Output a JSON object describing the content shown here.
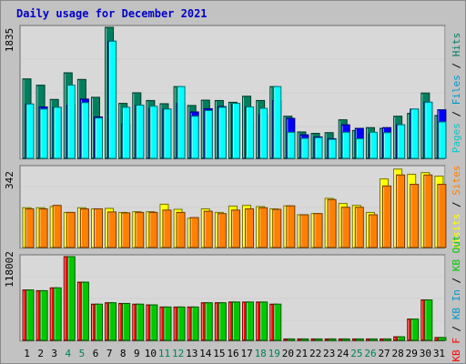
{
  "title": "Daily usage for December 2021",
  "chart_data": [
    {
      "type": "bar",
      "panel": "top",
      "categories": [
        "1",
        "2",
        "3",
        "4",
        "5",
        "6",
        "7",
        "8",
        "9",
        "10",
        "11",
        "12",
        "13",
        "14",
        "15",
        "16",
        "17",
        "18",
        "19",
        "20",
        "21",
        "22",
        "23",
        "24",
        "25",
        "26",
        "27",
        "28",
        "29",
        "30",
        "31"
      ],
      "weekend_days": [
        "4",
        "5",
        "11",
        "12",
        "18",
        "19",
        "25",
        "26"
      ],
      "ymax_label": "1835",
      "ymax": 1835,
      "series": [
        {
          "name": "Hits",
          "color": "#007f5f",
          "values": [
            1113,
            1025,
            825,
            1198,
            1105,
            855,
            1835,
            770,
            918,
            810,
            765,
            1005,
            740,
            815,
            810,
            785,
            870,
            810,
            1005,
            590,
            370,
            350,
            360,
            540,
            390,
            430,
            420,
            590,
            630,
            915,
            600
          ]
        },
        {
          "name": "Files",
          "color": "#0000ff",
          "values": [
            760,
            720,
            715,
            745,
            830,
            580,
            1640,
            480,
            745,
            700,
            690,
            770,
            650,
            695,
            725,
            755,
            720,
            610,
            810,
            560,
            330,
            300,
            275,
            470,
            420,
            340,
            430,
            470,
            690,
            785,
            680
          ]
        },
        {
          "name": "Pages",
          "color": "#00ffff",
          "values": [
            760,
            690,
            715,
            1025,
            780,
            565,
            1640,
            715,
            745,
            730,
            690,
            1005,
            590,
            670,
            715,
            770,
            720,
            700,
            1005,
            365,
            280,
            290,
            265,
            365,
            275,
            365,
            360,
            470,
            690,
            785,
            510
          ]
        }
      ],
      "right_labels": [
        {
          "text": "Pages",
          "color": "#00c8c8"
        },
        {
          "text": " / ",
          "color": "#000000"
        },
        {
          "text": "Files",
          "color": "#0096c8"
        },
        {
          "text": " / ",
          "color": "#000000"
        },
        {
          "text": "Hits",
          "color": "#007f5f"
        }
      ]
    },
    {
      "type": "bar",
      "panel": "middle",
      "categories": [
        "1",
        "2",
        "3",
        "4",
        "5",
        "6",
        "7",
        "8",
        "9",
        "10",
        "11",
        "12",
        "13",
        "14",
        "15",
        "16",
        "17",
        "18",
        "19",
        "20",
        "21",
        "22",
        "23",
        "24",
        "25",
        "26",
        "27",
        "28",
        "29",
        "30",
        "31"
      ],
      "ymax_label": "342",
      "ymax": 342,
      "series": [
        {
          "name": "Visits",
          "color": "#ffff00",
          "values": [
            170,
            170,
            175,
            150,
            170,
            165,
            167,
            150,
            153,
            153,
            185,
            163,
            125,
            165,
            150,
            177,
            180,
            175,
            165,
            178,
            140,
            145,
            210,
            188,
            180,
            150,
            293,
            335,
            313,
            320,
            305
          ]
        },
        {
          "name": "Sites",
          "color": "#ff8000",
          "values": [
            165,
            165,
            180,
            150,
            165,
            165,
            152,
            148,
            150,
            150,
            160,
            150,
            128,
            155,
            145,
            160,
            165,
            170,
            163,
            178,
            140,
            145,
            205,
            172,
            172,
            140,
            263,
            310,
            270,
            310,
            270
          ]
        }
      ],
      "right_labels": [
        {
          "text": "Visits",
          "color": "#ffff00"
        },
        {
          "text": " / ",
          "color": "#000000"
        },
        {
          "text": "Sites",
          "color": "#ff8000"
        }
      ]
    },
    {
      "type": "bar",
      "panel": "bottom",
      "categories": [
        "1",
        "2",
        "3",
        "4",
        "5",
        "6",
        "7",
        "8",
        "9",
        "10",
        "11",
        "12",
        "13",
        "14",
        "15",
        "16",
        "17",
        "18",
        "19",
        "20",
        "21",
        "22",
        "23",
        "24",
        "25",
        "26",
        "27",
        "28",
        "29",
        "30",
        "31"
      ],
      "ymax_label": "118002",
      "ymax": 118002,
      "series": [
        {
          "name": "KB F",
          "color": "#ff0000",
          "values": [
            71000,
            70000,
            74000,
            118002,
            82000,
            51000,
            53000,
            52000,
            51000,
            50000,
            47000,
            47000,
            47000,
            53000,
            53000,
            54000,
            54000,
            54000,
            51000,
            2000,
            2000,
            2000,
            2000,
            2000,
            2000,
            2000,
            2000,
            5000,
            30000,
            57000,
            4000
          ]
        },
        {
          "name": "KB Out",
          "color": "#00c800",
          "values": [
            71000,
            70000,
            74000,
            118002,
            82000,
            51000,
            53000,
            52000,
            51000,
            50000,
            47000,
            47000,
            47000,
            53000,
            53000,
            54000,
            54000,
            54000,
            51000,
            2000,
            2000,
            2000,
            2000,
            2000,
            2000,
            2000,
            2000,
            5000,
            30000,
            57000,
            4000
          ]
        }
      ],
      "right_labels": [
        {
          "text": "KB F",
          "color": "#ff0000"
        },
        {
          "text": " / ",
          "color": "#000000"
        },
        {
          "text": "KB In",
          "color": "#0096c8"
        },
        {
          "text": " / ",
          "color": "#000000"
        },
        {
          "text": "KB Out",
          "color": "#00c800"
        }
      ]
    }
  ]
}
